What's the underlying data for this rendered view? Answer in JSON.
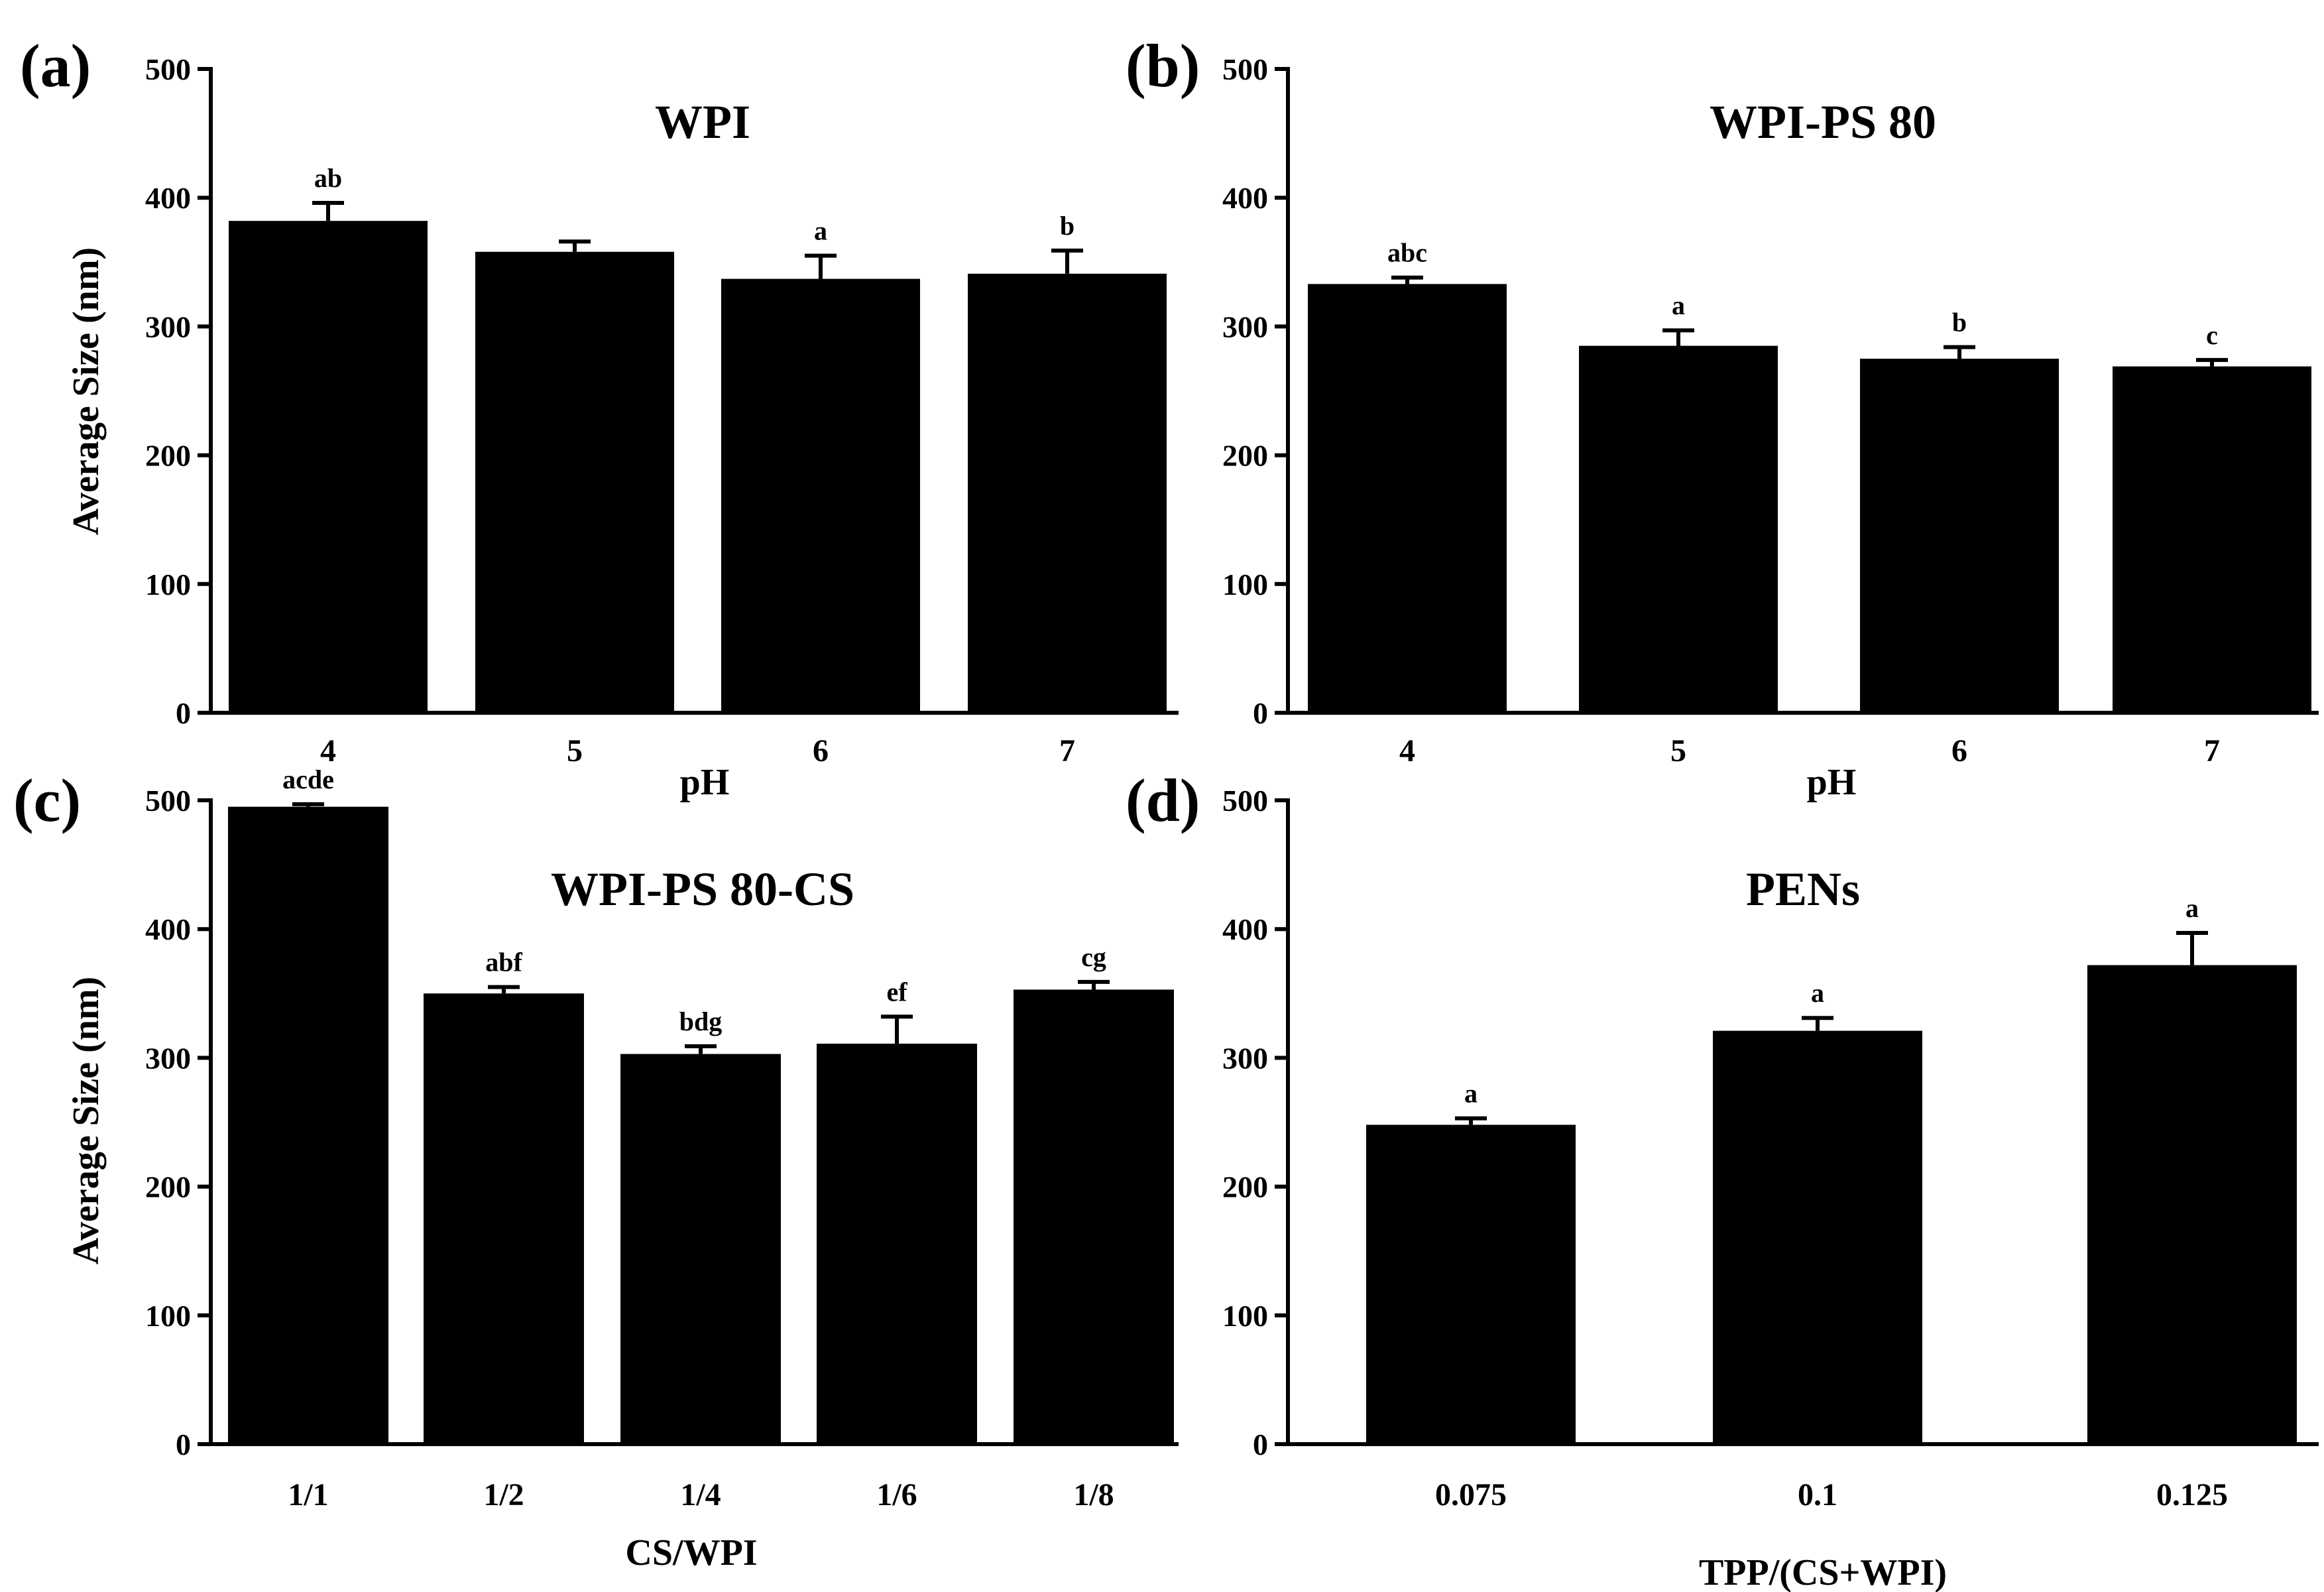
{
  "chart_data": [
    {
      "type": "bar",
      "panel_label": "(a)",
      "title": "WPI",
      "xlabel": "pH",
      "ylabel": "Average Size (nm)",
      "ylim": [
        0,
        500
      ],
      "yticks": [
        "0",
        "100",
        "200",
        "300",
        "400",
        "500"
      ],
      "categories": [
        "4",
        "5",
        "6",
        "7"
      ],
      "values": [
        382,
        358,
        337,
        341
      ],
      "errors": [
        14,
        8,
        18,
        18
      ],
      "annotations": [
        "ab",
        "",
        "a",
        "b"
      ]
    },
    {
      "type": "bar",
      "panel_label": "(b)",
      "title": "WPI-PS 80",
      "xlabel": "pH",
      "ylabel": "",
      "ylim": [
        0,
        500
      ],
      "yticks": [
        "0",
        "100",
        "200",
        "300",
        "400",
        "500"
      ],
      "categories": [
        "4",
        "5",
        "6",
        "7"
      ],
      "values": [
        333,
        285,
        275,
        269
      ],
      "errors": [
        5,
        12,
        9,
        5
      ],
      "annotations": [
        "abc",
        "a",
        "b",
        "c"
      ]
    },
    {
      "type": "bar",
      "panel_label": "(c)",
      "title": "WPI-PS 80-CS",
      "xlabel": "CS/WPI",
      "ylabel": "Average Size (nm)",
      "ylim": [
        0,
        500
      ],
      "yticks": [
        "0",
        "100",
        "200",
        "300",
        "400",
        "500"
      ],
      "categories": [
        "1/1",
        "1/2",
        "1/4",
        "1/6",
        "1/8"
      ],
      "values": [
        495,
        350,
        303,
        311,
        353
      ],
      "errors": [
        2,
        5,
        6,
        21,
        6
      ],
      "annotations": [
        "acde",
        "abf",
        "bdg",
        "ef",
        "cg"
      ]
    },
    {
      "type": "bar",
      "panel_label": "(d)",
      "title": "PENs",
      "xlabel": "TPP/(CS+WPI)",
      "ylabel": "",
      "ylim": [
        0,
        500
      ],
      "yticks": [
        "0",
        "100",
        "200",
        "300",
        "400",
        "500"
      ],
      "categories": [
        "0.075",
        "0.1",
        "0.125"
      ],
      "values": [
        248,
        321,
        372
      ],
      "errors": [
        5,
        10,
        25
      ],
      "annotations": [
        "a",
        "a",
        "a"
      ]
    }
  ]
}
